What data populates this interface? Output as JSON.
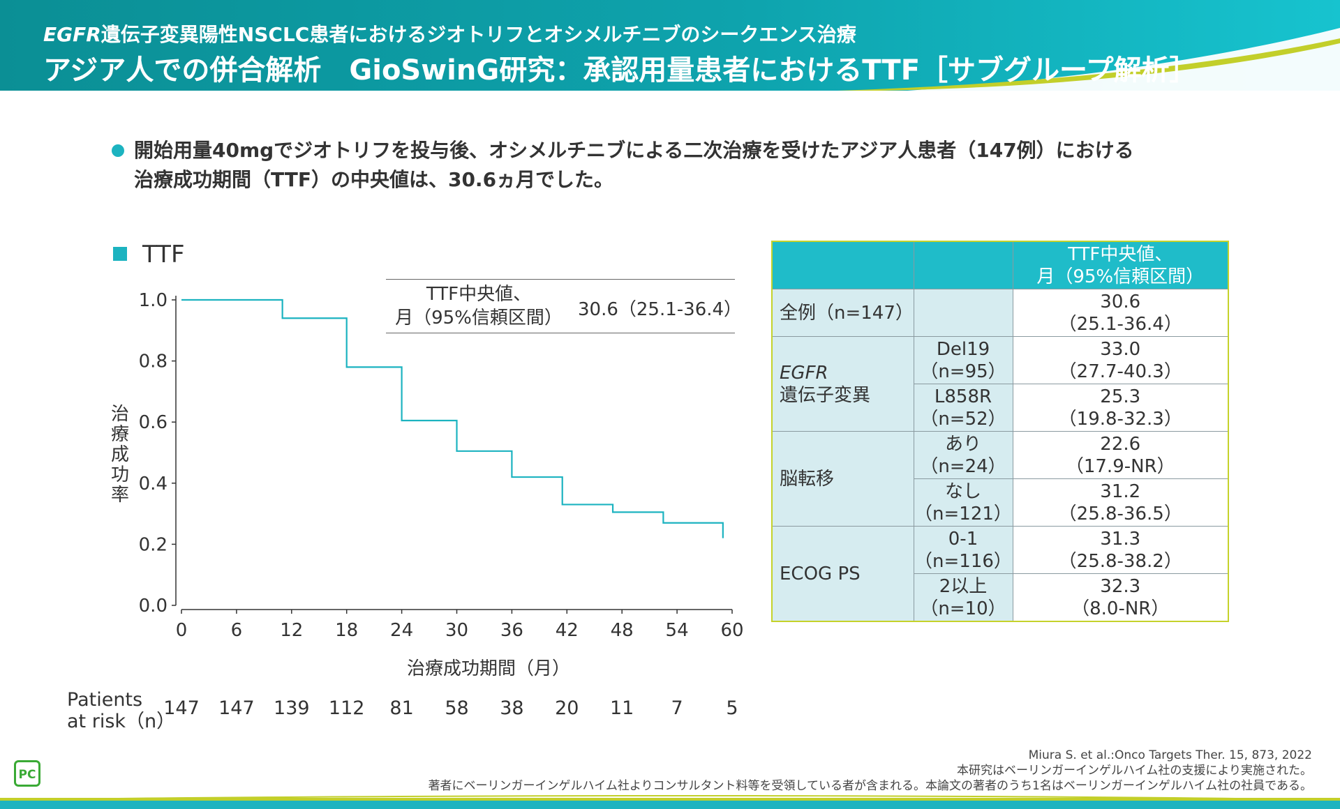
{
  "header": {
    "line1_italic": "EGFR",
    "line1_rest": "遺伝子変異陽性NSCLC患者におけるジオトリフとオシメルチニブのシークエンス治療",
    "line2": "アジア人での併合解析　GioSwinG研究：承認用量患者におけるTTF［サブグループ解析］"
  },
  "bullet": {
    "line1": "開始用量40mgでジオトリフを投与後、オシメルチニブによる二次治療を受けたアジア人患者（147例）における",
    "line2": "治療成功期間（TTF）の中央値は、30.6ヵ月でした。"
  },
  "legend": {
    "label": "TTF"
  },
  "colors": {
    "accent": "#1cb3c0",
    "table_header": "#1fbcc9",
    "table_group": "#d6ecf0",
    "table_border": "#c5d22a",
    "brand_green": "#3aaa35",
    "lime": "#c2cf2a"
  },
  "chart_data": {
    "type": "line",
    "subtype": "kaplan-meier step",
    "series": [
      {
        "name": "TTF",
        "x": [
          0,
          11,
          18,
          24,
          30,
          36,
          41.5,
          47,
          52.5,
          59,
          59
        ],
        "y": [
          1.0,
          0.94,
          0.78,
          0.605,
          0.505,
          0.42,
          0.33,
          0.305,
          0.27,
          0.265,
          0.22
        ]
      }
    ],
    "xlabel": "治療成功期間（月）",
    "ylabel": "治療成功率",
    "xlim": [
      0,
      60
    ],
    "ylim": [
      0,
      1.0
    ],
    "xticks": [
      0,
      6,
      12,
      18,
      24,
      30,
      36,
      42,
      48,
      54,
      60
    ],
    "yticks": [
      "0.0",
      "0.2",
      "0.4",
      "0.6",
      "0.8",
      "1.0"
    ],
    "inset": {
      "label_line1": "TTF中央値、",
      "label_line2": "月（95%信頼区間）",
      "value": "30.6（25.1-36.4）"
    },
    "risk_table": {
      "label_line1": "Patients",
      "label_line2": "at risk（n）",
      "values": [
        147,
        147,
        139,
        112,
        81,
        58,
        38,
        20,
        11,
        7,
        5
      ]
    }
  },
  "subgroup_table": {
    "header": [
      "",
      "",
      "TTF中央値、\n月（95%信頼区間）"
    ],
    "header_line1": "TTF中央値、",
    "header_line2": "月（95%信頼区間）",
    "all": {
      "label": "全例（n=147）",
      "median": "30.6",
      "ci": "（25.1-36.4）"
    },
    "egfr": {
      "label_italic": "EGFR",
      "label_rest": "遺伝子変異",
      "rows": [
        {
          "sub1": "Del19",
          "sub2": "（n=95）",
          "median": "33.0",
          "ci": "（27.7-40.3）"
        },
        {
          "sub1": "L858R",
          "sub2": "（n=52）",
          "median": "25.3",
          "ci": "（19.8-32.3）"
        }
      ]
    },
    "brain": {
      "label": "脳転移",
      "rows": [
        {
          "sub1": "あり",
          "sub2": "（n=24）",
          "median": "22.6",
          "ci": "（17.9-NR）"
        },
        {
          "sub1": "なし",
          "sub2": "（n=121）",
          "median": "31.2",
          "ci": "（25.8-36.5）"
        }
      ]
    },
    "ecog": {
      "label": "ECOG PS",
      "rows": [
        {
          "sub1": "0-1",
          "sub2": "（n=116）",
          "median": "31.3",
          "ci": "（25.8-38.2）"
        },
        {
          "sub1": "2以上",
          "sub2": "（n=10）",
          "median": "32.3",
          "ci": "（8.0-NR）"
        }
      ]
    }
  },
  "footer": {
    "ref1": "Miura S. et al.:Onco Targets Ther. 15, 873, 2022",
    "ref2": "本研究はベーリンガーインゲルハイム社の支援により実施された。",
    "ref3": "著者にベーリンガーインゲルハイム社よりコンサルタント料等を受領している者が含まれる。本論文の著者のうち1名はベーリンガーインゲルハイム社の社員である。",
    "logo_text": "PC"
  }
}
